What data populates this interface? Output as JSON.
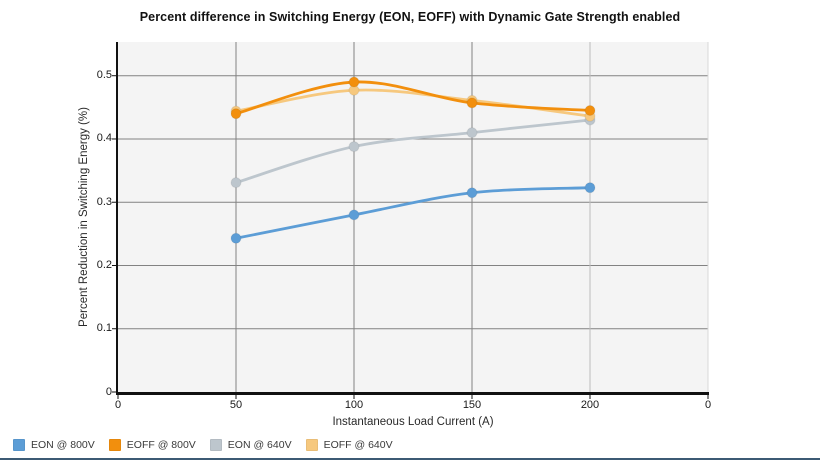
{
  "chart_data": {
    "type": "line",
    "title": "Percent difference in Switching Energy (EON, EOFF) with Dynamic Gate Strength enabled",
    "xlabel": "Instantaneous Load Current (A)",
    "ylabel": "Percent Reduction in Switching Energy (%)",
    "x": [
      50,
      100,
      150,
      200
    ],
    "x_tick_labels": [
      "0",
      "50",
      "100",
      "150",
      "200",
      "0"
    ],
    "y_ticks": [
      0,
      0.1,
      0.2,
      0.3,
      0.4,
      0.5
    ],
    "y_tick_labels": [
      "0",
      "0.1",
      "0.2",
      "0.3",
      "0.4",
      "0.5"
    ],
    "ylim": [
      0,
      0.553
    ],
    "grid": true,
    "legend_position": "bottom-left",
    "series": [
      {
        "name": "EON @ 800V",
        "color": "#5C9DD6",
        "values": [
          0.243,
          0.28,
          0.315,
          0.323
        ]
      },
      {
        "name": "EOFF @ 800V",
        "color": "#F28F0D",
        "values": [
          0.44,
          0.49,
          0.457,
          0.445
        ]
      },
      {
        "name": "EON @ 640V",
        "color": "#BDC6CD",
        "values": [
          0.331,
          0.388,
          0.41,
          0.43
        ]
      },
      {
        "name": "EOFF @ 640V",
        "color": "#F6C87E",
        "values": [
          0.444,
          0.477,
          0.461,
          0.436
        ]
      }
    ]
  },
  "colors": {
    "plot_bg": "#f4f4f4",
    "grid_major": "#828282",
    "grid_light": "#bdbdbd",
    "plot_right_edge": "#d8d8d8",
    "axis": "#111111",
    "divider": "#3C5A74"
  }
}
